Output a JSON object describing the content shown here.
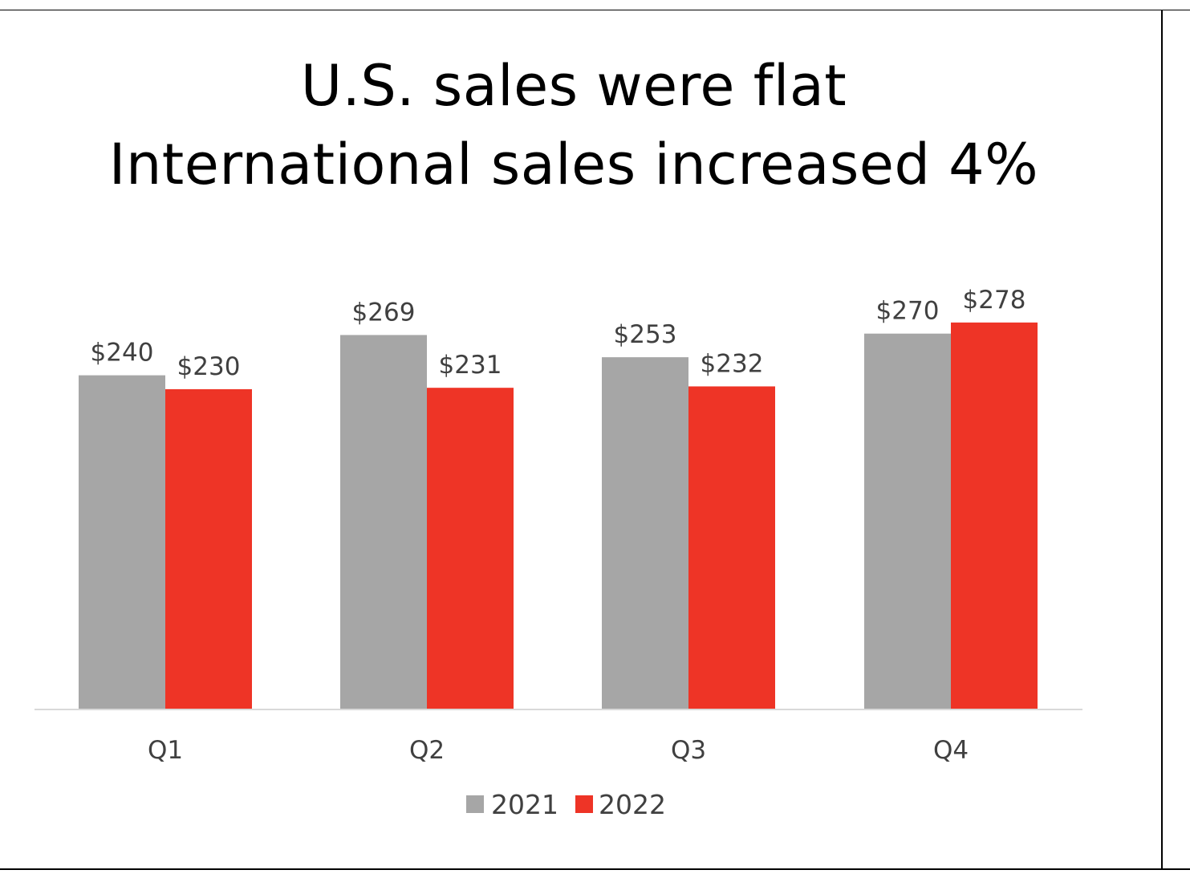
{
  "slide": {
    "title_line1": "U.S. sales were flat",
    "title_line2": "International sales increased 4%"
  },
  "chart_data": {
    "type": "bar",
    "categories": [
      "Q1",
      "Q2",
      "Q3",
      "Q4"
    ],
    "series": [
      {
        "name": "2021",
        "color": "#a6a6a6",
        "values": [
          240,
          269,
          253,
          270
        ],
        "labels": [
          "$240",
          "$269",
          "$253",
          "$270"
        ]
      },
      {
        "name": "2022",
        "color": "#ee3426",
        "values": [
          230,
          231,
          232,
          278
        ],
        "labels": [
          "$230",
          "$231",
          "$232",
          "$278"
        ]
      }
    ],
    "xlabel": "",
    "ylabel": "",
    "ylim": [
      0,
      310
    ],
    "grid": false,
    "legend": "bottom-center",
    "axis_color": "#d9d9d9"
  }
}
